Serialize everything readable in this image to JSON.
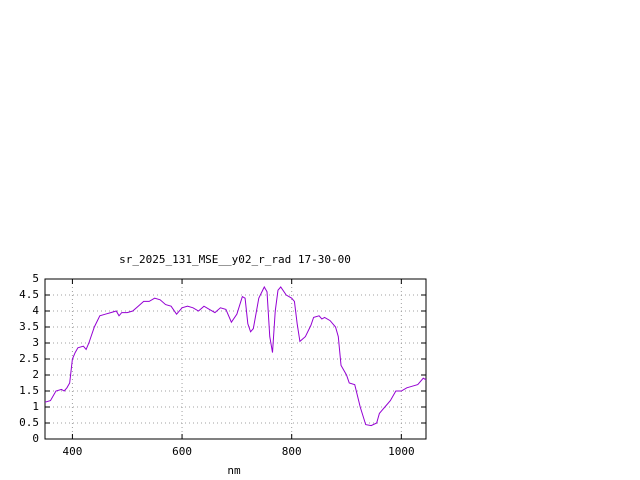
{
  "chart_data": {
    "type": "line",
    "title": "sr_2025_131_MSE__y02_r_rad 17-30-00",
    "xlabel": "nm",
    "x": [
      350,
      360,
      370,
      380,
      385,
      390,
      395,
      400,
      405,
      410,
      420,
      425,
      430,
      440,
      450,
      460,
      470,
      480,
      485,
      490,
      500,
      510,
      520,
      530,
      540,
      550,
      560,
      570,
      580,
      590,
      600,
      610,
      620,
      630,
      640,
      650,
      660,
      670,
      680,
      690,
      700,
      710,
      715,
      720,
      725,
      730,
      740,
      750,
      755,
      760,
      765,
      770,
      775,
      780,
      790,
      800,
      805,
      810,
      815,
      825,
      835,
      840,
      850,
      855,
      860,
      870,
      880,
      885,
      890,
      900,
      905,
      915,
      925,
      935,
      945,
      955,
      960,
      970,
      980,
      990,
      1000,
      1010,
      1020,
      1030,
      1040,
      1045
    ],
    "values": [
      1.15,
      1.2,
      1.5,
      1.55,
      1.5,
      1.6,
      1.75,
      2.5,
      2.7,
      2.85,
      2.9,
      2.8,
      3.0,
      3.5,
      3.85,
      3.9,
      3.95,
      4.0,
      3.85,
      3.95,
      3.95,
      4.0,
      4.15,
      4.3,
      4.3,
      4.4,
      4.35,
      4.2,
      4.15,
      3.9,
      4.1,
      4.15,
      4.1,
      4.0,
      4.15,
      4.05,
      3.95,
      4.1,
      4.05,
      3.65,
      3.9,
      4.45,
      4.4,
      3.6,
      3.35,
      3.45,
      4.4,
      4.75,
      4.6,
      3.2,
      2.7,
      4.0,
      4.65,
      4.75,
      4.5,
      4.4,
      4.3,
      3.6,
      3.05,
      3.2,
      3.55,
      3.8,
      3.85,
      3.75,
      3.8,
      3.7,
      3.5,
      3.2,
      2.3,
      2.0,
      1.75,
      1.7,
      1.0,
      0.45,
      0.42,
      0.5,
      0.8,
      1.0,
      1.2,
      1.5,
      1.5,
      1.6,
      1.65,
      1.7,
      1.9,
      1.85
    ],
    "color": "#9400d3",
    "xlim": [
      350,
      1045
    ],
    "ylim": [
      0,
      5
    ],
    "xticks": [
      400,
      600,
      800,
      1000
    ],
    "yticks": [
      0,
      0.5,
      1,
      1.5,
      2,
      2.5,
      3,
      3.5,
      4,
      4.5,
      5
    ],
    "grid": true
  }
}
